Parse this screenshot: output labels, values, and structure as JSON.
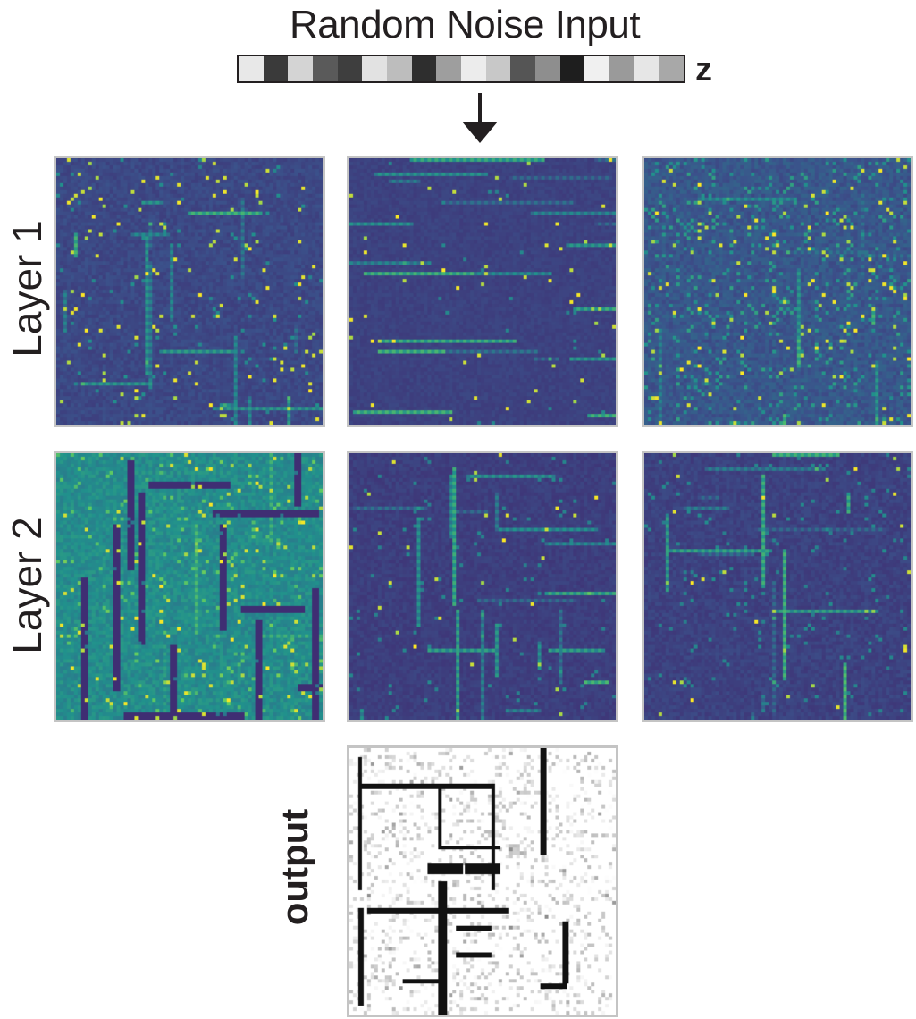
{
  "title": "Random Noise Input",
  "latent_label": "z",
  "noise_cells": [
    "#e8e8e8",
    "#3a3a3a",
    "#d4d4d4",
    "#5a5a5a",
    "#3e3e3e",
    "#e2e2e2",
    "#bdbdbd",
    "#2e2e2e",
    "#9e9e9e",
    "#ececec",
    "#c8c8c8",
    "#555555",
    "#8e8e8e",
    "#1e1e1e",
    "#f0f0f0",
    "#9a9a9a",
    "#e6e6e6",
    "#a8a8a8"
  ],
  "arrow_icon": "down-arrow-icon",
  "rows": [
    {
      "label": "Layer 1",
      "panel_count": 3
    },
    {
      "label": "Layer 2",
      "panel_count": 3
    }
  ],
  "output_label": "output",
  "colors": {
    "viridis_dark": "#3b1f6e",
    "viridis_blue": "#2b3f8c",
    "viridis_teal": "#21918c",
    "viridis_green": "#5ec962",
    "viridis_yellow": "#fde725",
    "panel_border": "#c4c4c4",
    "text": "#231f20"
  }
}
